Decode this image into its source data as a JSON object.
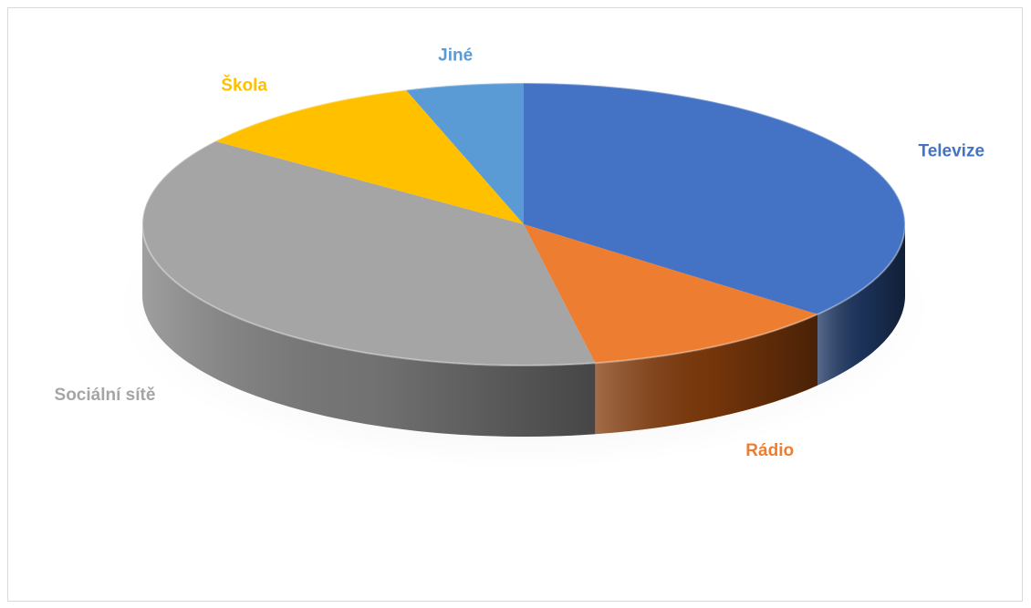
{
  "chart_data": {
    "type": "pie",
    "style": "3d",
    "categories": [
      "Televize",
      "Rádio",
      "Sociální sítě",
      "Škola",
      "Jiné"
    ],
    "values": [
      36,
      11,
      38,
      10,
      5
    ],
    "unit": "%",
    "legend": "none",
    "colors": [
      "#4472C4",
      "#ED7D31",
      "#A5A5A5",
      "#FFC000",
      "#5B9BD5"
    ],
    "side_colors": [
      "#1F3864",
      "#843C0C",
      "#7F7F7F",
      "#BF9000",
      "#2E75B6"
    ]
  }
}
